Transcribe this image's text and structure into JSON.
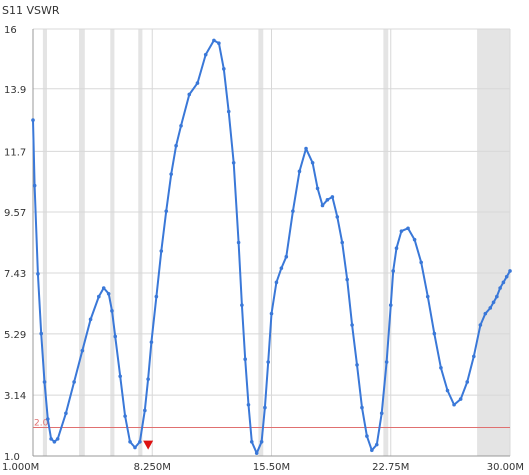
{
  "chart_data": {
    "type": "line",
    "title": "S11 VSWR",
    "xlabel": "",
    "ylabel": "",
    "xlim": [
      1.0,
      30.0
    ],
    "ylim": [
      1.0,
      16.0
    ],
    "x_ticks": [
      {
        "value": 1.0,
        "label": "1.000M"
      },
      {
        "value": 8.25,
        "label": "8.250M"
      },
      {
        "value": 15.5,
        "label": "15.50M"
      },
      {
        "value": 22.75,
        "label": "22.75M"
      },
      {
        "value": 30.0,
        "label": "30.00M"
      }
    ],
    "y_ticks": [
      {
        "value": 1.0,
        "label": "1.0"
      },
      {
        "value": 3.14,
        "label": "3.14"
      },
      {
        "value": 5.29,
        "label": "5.29"
      },
      {
        "value": 7.43,
        "label": "7.43"
      },
      {
        "value": 9.57,
        "label": "9.57"
      },
      {
        "value": 11.7,
        "label": "11.7"
      },
      {
        "value": 13.9,
        "label": "13.9"
      },
      {
        "value": 16.0,
        "label": "16"
      }
    ],
    "reference_line": {
      "value": 2.0,
      "label": "2.0",
      "color": "#e07070"
    },
    "marker": {
      "x": 8.0,
      "y": 1.33,
      "color": "#dd1111"
    },
    "bands": [
      [
        1.6,
        1.85
      ],
      [
        3.8,
        4.15
      ],
      [
        5.7,
        5.95
      ],
      [
        7.4,
        7.65
      ],
      [
        14.7,
        15.0
      ],
      [
        22.3,
        22.6
      ],
      [
        28.0,
        30.0
      ]
    ],
    "grid": true,
    "colors": {
      "line": "#3a78d8",
      "grid": "#d8d8d8",
      "band": "#e4e4e4"
    },
    "series": [
      {
        "x": [
          1.0,
          1.1,
          1.3,
          1.5,
          1.7,
          1.9,
          2.1,
          2.3,
          2.5,
          3.0,
          3.5,
          4.0,
          4.5,
          5.0,
          5.3,
          5.6,
          5.8,
          6.0,
          6.3,
          6.6,
          6.9,
          7.2,
          7.5,
          7.8,
          8.0,
          8.2,
          8.5,
          8.8,
          9.1,
          9.4,
          9.7,
          10.0,
          10.5,
          11.0,
          11.5,
          12.0,
          12.3,
          12.6,
          12.9,
          13.2,
          13.5,
          13.7,
          13.9,
          14.1,
          14.3,
          14.6,
          14.9,
          15.1,
          15.3,
          15.5,
          15.8,
          16.1,
          16.4,
          16.8,
          17.2,
          17.6,
          18.0,
          18.3,
          18.6,
          18.9,
          19.2,
          19.5,
          19.8,
          20.1,
          20.4,
          20.7,
          21.0,
          21.3,
          21.6,
          21.9,
          22.2,
          22.5,
          22.75,
          22.9,
          23.1,
          23.4,
          23.8,
          24.2,
          24.6,
          25.0,
          25.4,
          25.8,
          26.2,
          26.6,
          27.0,
          27.4,
          27.8,
          28.2,
          28.5,
          28.8,
          29.0,
          29.2,
          29.4,
          29.6,
          29.8,
          30.0
        ],
        "y": [
          12.8,
          10.5,
          7.4,
          5.3,
          3.6,
          2.3,
          1.6,
          1.5,
          1.6,
          2.5,
          3.6,
          4.7,
          5.8,
          6.6,
          6.9,
          6.7,
          6.1,
          5.2,
          3.8,
          2.4,
          1.5,
          1.3,
          1.5,
          2.6,
          3.7,
          5.0,
          6.6,
          8.2,
          9.6,
          10.9,
          11.9,
          12.6,
          13.7,
          14.1,
          15.1,
          15.6,
          15.5,
          14.6,
          13.1,
          11.3,
          8.5,
          6.3,
          4.4,
          2.8,
          1.5,
          1.1,
          1.5,
          2.7,
          4.3,
          6.0,
          7.1,
          7.6,
          8.0,
          9.6,
          11.0,
          11.8,
          11.3,
          10.4,
          9.8,
          10.0,
          10.1,
          9.4,
          8.5,
          7.2,
          5.6,
          4.2,
          2.7,
          1.7,
          1.2,
          1.4,
          2.5,
          4.3,
          6.3,
          7.5,
          8.3,
          8.9,
          9.0,
          8.6,
          7.8,
          6.6,
          5.3,
          4.1,
          3.3,
          2.8,
          3.0,
          3.6,
          4.5,
          5.6,
          6.0,
          6.2,
          6.4,
          6.6,
          6.9,
          7.1,
          7.3,
          7.5
        ]
      }
    ]
  }
}
